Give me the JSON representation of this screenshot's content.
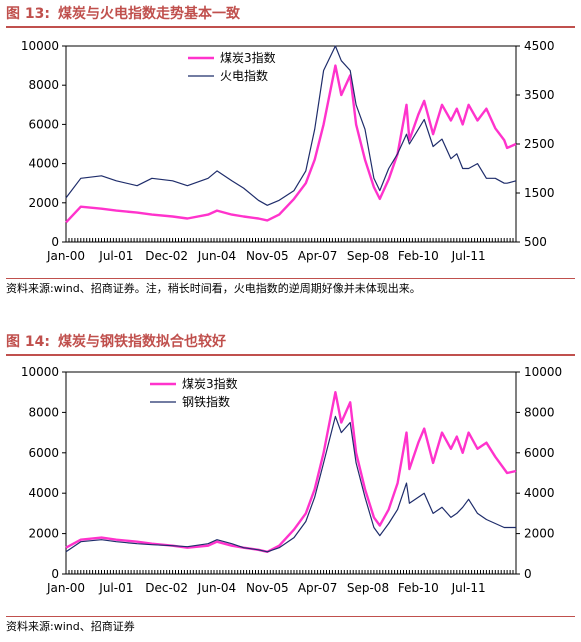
{
  "colors": {
    "accent": "#c0504d",
    "coal": "#ff33cc",
    "second": "#1f2d6b"
  },
  "charts": [
    {
      "heading": {
        "label": "图 13:",
        "text": "煤炭与火电指数走势基本一致"
      },
      "source": "资料来源:wind、招商证券。注，稍长时间看，火电指数的逆周期好像并未体现出来。",
      "chart_data": {
        "type": "line",
        "x_ticks": [
          "Jan-00",
          "Jul-01",
          "Dec-02",
          "Jun-04",
          "Nov-05",
          "Apr-07",
          "Sep-08",
          "Feb-10",
          "Jul-11"
        ],
        "x_range": [
          "2000-01",
          "2012-09"
        ],
        "y_left": {
          "range": [
            0,
            10000
          ],
          "ticks": [
            0,
            2000,
            4000,
            6000,
            8000,
            10000
          ]
        },
        "y_right": {
          "range": [
            500,
            4500
          ],
          "ticks": [
            500,
            1500,
            2500,
            3500,
            4500
          ]
        },
        "legend_position": "top-center",
        "series": [
          {
            "name": "煤炭3指数",
            "axis": "left",
            "color": "#ff33cc",
            "x": [
              "2000-01",
              "2000-06",
              "2001-01",
              "2001-06",
              "2002-01",
              "2002-06",
              "2003-01",
              "2003-06",
              "2004-01",
              "2004-04",
              "2004-09",
              "2005-01",
              "2005-06",
              "2005-09",
              "2006-01",
              "2006-06",
              "2006-10",
              "2007-01",
              "2007-04",
              "2007-08",
              "2007-10",
              "2008-01",
              "2008-03",
              "2008-06",
              "2008-09",
              "2008-11",
              "2009-02",
              "2009-05",
              "2009-08",
              "2009-09",
              "2009-12",
              "2010-02",
              "2010-05",
              "2010-08",
              "2010-11",
              "2011-01",
              "2011-03",
              "2011-05",
              "2011-08",
              "2011-11",
              "2012-02",
              "2012-05",
              "2012-06",
              "2012-09"
            ],
            "y": [
              1000,
              1800,
              1700,
              1600,
              1500,
              1400,
              1300,
              1200,
              1400,
              1600,
              1400,
              1300,
              1200,
              1100,
              1400,
              2200,
              3000,
              4200,
              6000,
              9000,
              7500,
              8500,
              6000,
              4200,
              2800,
              2200,
              3200,
              4500,
              7000,
              5200,
              6500,
              7200,
              5500,
              7000,
              6200,
              6800,
              6000,
              7000,
              6200,
              6800,
              5800,
              5200,
              4800,
              5000
            ]
          },
          {
            "name": "火电指数",
            "axis": "right",
            "color": "#1f2d6b",
            "x": [
              "2000-01",
              "2000-06",
              "2001-01",
              "2001-06",
              "2002-01",
              "2002-06",
              "2003-01",
              "2003-06",
              "2004-01",
              "2004-04",
              "2004-09",
              "2005-01",
              "2005-06",
              "2005-09",
              "2006-01",
              "2006-06",
              "2006-10",
              "2007-01",
              "2007-04",
              "2007-08",
              "2007-10",
              "2008-01",
              "2008-03",
              "2008-06",
              "2008-09",
              "2008-11",
              "2009-02",
              "2009-05",
              "2009-08",
              "2009-09",
              "2009-12",
              "2010-02",
              "2010-05",
              "2010-08",
              "2010-11",
              "2011-01",
              "2011-03",
              "2011-05",
              "2011-08",
              "2011-11",
              "2012-02",
              "2012-05",
              "2012-06",
              "2012-09"
            ],
            "y": [
              1400,
              1800,
              1850,
              1750,
              1650,
              1800,
              1750,
              1650,
              1800,
              1950,
              1750,
              1600,
              1350,
              1250,
              1350,
              1550,
              1950,
              2800,
              4000,
              4500,
              4200,
              4000,
              3300,
              2800,
              1800,
              1550,
              2000,
              2300,
              2700,
              2500,
              2800,
              3000,
              2450,
              2600,
              2200,
              2300,
              2000,
              2000,
              2100,
              1800,
              1800,
              1700,
              1700,
              1750
            ]
          }
        ]
      }
    },
    {
      "heading": {
        "label": "图 14:",
        "text": "煤炭与钢铁指数拟合也较好"
      },
      "source": "资料来源:wind、招商证券",
      "chart_data": {
        "type": "line",
        "x_ticks": [
          "Jan-00",
          "Jul-01",
          "Dec-02",
          "Jun-04",
          "Nov-05",
          "Apr-07",
          "Sep-08",
          "Feb-10",
          "Jul-11"
        ],
        "x_range": [
          "2000-01",
          "2012-09"
        ],
        "y_left": {
          "range": [
            0,
            10000
          ],
          "ticks": [
            0,
            2000,
            4000,
            6000,
            8000,
            10000
          ]
        },
        "y_right": {
          "range": [
            0,
            10000
          ],
          "ticks": [
            0,
            2000,
            4000,
            6000,
            8000,
            10000
          ]
        },
        "legend_position": "top-center",
        "series": [
          {
            "name": "煤炭3指数",
            "axis": "left",
            "color": "#ff33cc",
            "x": [
              "2000-01",
              "2000-06",
              "2001-01",
              "2001-06",
              "2002-01",
              "2002-06",
              "2003-01",
              "2003-06",
              "2004-01",
              "2004-04",
              "2004-09",
              "2005-01",
              "2005-06",
              "2005-09",
              "2006-01",
              "2006-06",
              "2006-10",
              "2007-01",
              "2007-04",
              "2007-08",
              "2007-10",
              "2008-01",
              "2008-03",
              "2008-06",
              "2008-09",
              "2008-11",
              "2009-02",
              "2009-05",
              "2009-08",
              "2009-09",
              "2009-12",
              "2010-02",
              "2010-05",
              "2010-08",
              "2010-11",
              "2011-01",
              "2011-03",
              "2011-05",
              "2011-08",
              "2011-11",
              "2012-02",
              "2012-05",
              "2012-06",
              "2012-09"
            ],
            "y": [
              1300,
              1700,
              1800,
              1700,
              1600,
              1500,
              1400,
              1300,
              1400,
              1600,
              1400,
              1300,
              1200,
              1100,
              1400,
              2200,
              3000,
              4200,
              6000,
              9000,
              7500,
              8500,
              6000,
              4200,
              2800,
              2400,
              3200,
              4500,
              7000,
              5200,
              6500,
              7200,
              5500,
              7000,
              6200,
              6800,
              6000,
              7000,
              6200,
              6500,
              5800,
              5200,
              5000,
              5100
            ]
          },
          {
            "name": "钢铁指数",
            "axis": "right",
            "color": "#1f2d6b",
            "x": [
              "2000-01",
              "2000-06",
              "2001-01",
              "2001-06",
              "2002-01",
              "2002-06",
              "2003-01",
              "2003-06",
              "2004-01",
              "2004-04",
              "2004-09",
              "2005-01",
              "2005-06",
              "2005-09",
              "2006-01",
              "2006-06",
              "2006-10",
              "2007-01",
              "2007-04",
              "2007-08",
              "2007-10",
              "2008-01",
              "2008-03",
              "2008-06",
              "2008-09",
              "2008-11",
              "2009-02",
              "2009-05",
              "2009-08",
              "2009-09",
              "2009-12",
              "2010-02",
              "2010-05",
              "2010-08",
              "2010-11",
              "2011-01",
              "2011-03",
              "2011-05",
              "2011-08",
              "2011-11",
              "2012-02",
              "2012-05",
              "2012-06",
              "2012-09"
            ],
            "y": [
              1100,
              1600,
              1700,
              1600,
              1500,
              1450,
              1400,
              1350,
              1500,
              1700,
              1500,
              1300,
              1200,
              1100,
              1300,
              1800,
              2600,
              3800,
              5500,
              7800,
              7000,
              7500,
              5500,
              3800,
              2300,
              1900,
              2500,
              3200,
              4500,
              3500,
              3800,
              4000,
              3000,
              3300,
              2800,
              3000,
              3300,
              3700,
              3000,
              2700,
              2500,
              2300,
              2300,
              2300
            ]
          }
        ]
      }
    }
  ]
}
